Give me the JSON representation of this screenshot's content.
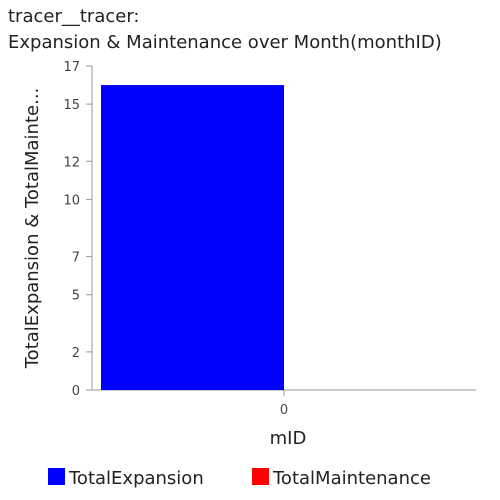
{
  "chart_data": {
    "type": "bar",
    "title_lines": [
      "tracer__tracer:",
      "Expansion & Maintenance over Month(monthID)"
    ],
    "xlabel": "mID",
    "ylabel": "TotalExpansion & TotalMainte...",
    "categories": [
      "0"
    ],
    "series": [
      {
        "name": "TotalExpansion",
        "color": "#0000ff",
        "values": [
          16
        ]
      },
      {
        "name": "TotalMaintenance",
        "color": "#ff0000",
        "values": [
          0
        ]
      }
    ],
    "ylim": [
      0,
      17
    ],
    "yticks": [
      0,
      2,
      5,
      7,
      10,
      12,
      15,
      17
    ],
    "legend_position": "bottom"
  }
}
